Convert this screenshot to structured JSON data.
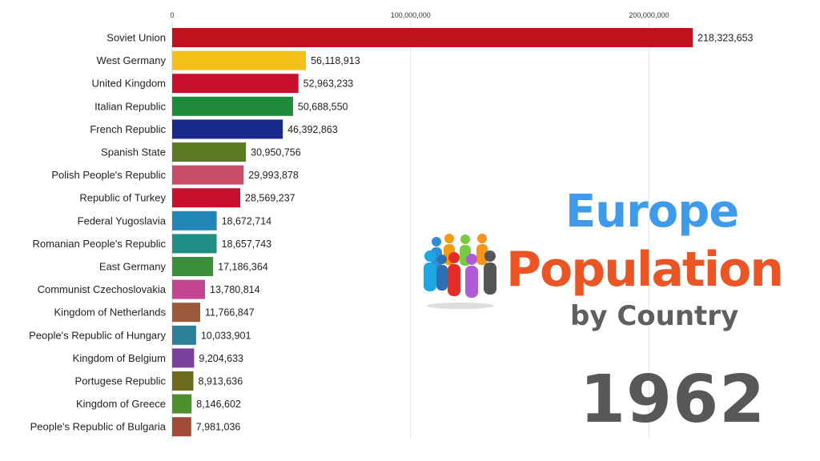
{
  "chart_data": {
    "type": "bar",
    "orientation": "horizontal",
    "xlim": [
      0,
      230000000
    ],
    "ticks": [
      {
        "value": 0,
        "label": "0"
      },
      {
        "value": 100000000,
        "label": "100,000,000"
      },
      {
        "value": 200000000,
        "label": "200,000,000"
      }
    ],
    "categories": [
      "Soviet Union",
      "West Germany",
      "United Kingdom",
      "Italian Republic",
      "French Republic",
      "Spanish State",
      "Polish People's Republic",
      "Republic of Turkey",
      "Federal Yugoslavia",
      "Romanian People's Republic",
      "East Germany",
      "Communist Czechoslovakia",
      "Kingdom of Netherlands",
      "People's Republic of Hungary",
      "Kingdom of Belgium",
      "Portugese Republic",
      "Kingdom of Greece",
      "People's Republic of Bulgaria"
    ],
    "values": [
      218323653,
      56118913,
      52963233,
      50688550,
      46392863,
      30950756,
      29993878,
      28569237,
      18672714,
      18657743,
      17186364,
      13780814,
      11766847,
      10033901,
      9204633,
      8913636,
      8146602,
      7981036
    ],
    "value_labels": [
      "218,323,653",
      "56,118,913",
      "52,963,233",
      "50,688,550",
      "46,392,863",
      "30,950,756",
      "29,993,878",
      "28,569,237",
      "18,672,714",
      "18,657,743",
      "17,186,364",
      "13,780,814",
      "11,766,847",
      "10,033,901",
      "9,204,633",
      "8,913,636",
      "8,146,602",
      "7,981,036"
    ],
    "colors": [
      "#c0111f",
      "#f5bf1a",
      "#c8102e",
      "#1e8a3c",
      "#1a2a8c",
      "#5c7a26",
      "#c74d66",
      "#c8102e",
      "#2185b5",
      "#1f8f86",
      "#3a8f3a",
      "#c2468f",
      "#9a5a3a",
      "#2b7f96",
      "#7a3f9a",
      "#6e6a1e",
      "#4e8f2e",
      "#a04a3a"
    ]
  },
  "title": {
    "line1": "Europe",
    "line2": "Population",
    "line3": "by Country",
    "year": "1962",
    "colors": {
      "line1": "#3d9be9",
      "line2": "#ea5526",
      "line3": "#5f5f5f",
      "year": "#585858"
    }
  },
  "icon": "people-group-icon"
}
